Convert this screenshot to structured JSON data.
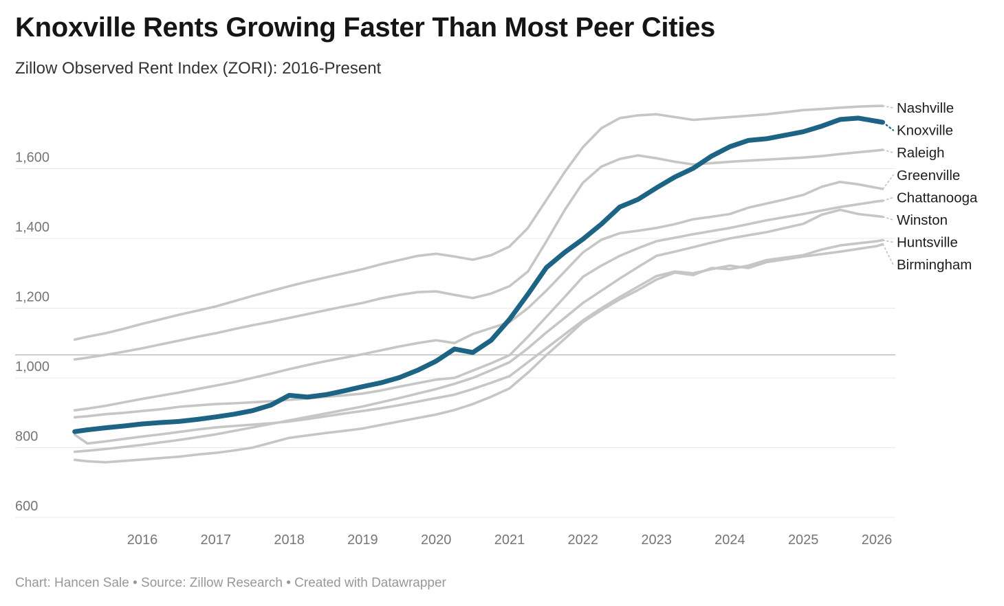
{
  "header": {
    "title": "Knoxville Rents Growing Faster Than Most Peer Cities",
    "subtitle": "Zillow Observed Rent Index (ZORI): 2016-Present"
  },
  "footer": {
    "text": "Chart: Hancen Sale • Source: Zillow Research • Created with Datawrapper"
  },
  "colors": {
    "highlight_line": "#1d6484",
    "gray_line": "#c6c6c6",
    "gridline": "#e9e9e9",
    "reference_line": "#bdbdbd",
    "axis_text": "#767676",
    "series_label_text": "#1d1d1d"
  },
  "chart_data": {
    "type": "line",
    "title": "Knoxville Rents Growing Faster Than Most Peer Cities",
    "subtitle": "Zillow Observed Rent Index (ZORI): 2016-Present",
    "xlabel": "",
    "ylabel": "",
    "legend_position": "right-edge-labels",
    "grid": "horizontal-only",
    "x_domain": [
      2015.08,
      2026.08
    ],
    "ylim": [
      600,
      1800
    ],
    "reference_line": {
      "value": 1066,
      "label": ""
    },
    "y_axis": {
      "ticks": [
        {
          "value": 600,
          "label": "600"
        },
        {
          "value": 800,
          "label": "800"
        },
        {
          "value": 1000,
          "label": "1,000"
        },
        {
          "value": 1200,
          "label": "1,200"
        },
        {
          "value": 1400,
          "label": "1,400"
        },
        {
          "value": 1600,
          "label": "1,600"
        }
      ]
    },
    "x_axis": {
      "ticks": [
        {
          "value": 2016,
          "label": "2016"
        },
        {
          "value": 2017,
          "label": "2017"
        },
        {
          "value": 2018,
          "label": "2018"
        },
        {
          "value": 2019,
          "label": "2019"
        },
        {
          "value": 2020,
          "label": "2020"
        },
        {
          "value": 2021,
          "label": "2021"
        },
        {
          "value": 2022,
          "label": "2022"
        },
        {
          "value": 2023,
          "label": "2023"
        },
        {
          "value": 2024,
          "label": "2024"
        },
        {
          "value": 2025,
          "label": "2025"
        },
        {
          "value": 2026,
          "label": "2026"
        }
      ]
    },
    "x": [
      2015.08,
      2015.25,
      2015.5,
      2015.75,
      2016,
      2016.25,
      2016.5,
      2016.75,
      2017,
      2017.25,
      2017.5,
      2017.75,
      2018,
      2018.25,
      2018.5,
      2018.75,
      2019,
      2019.25,
      2019.5,
      2019.75,
      2020,
      2020.25,
      2020.5,
      2020.75,
      2021,
      2021.25,
      2021.5,
      2021.75,
      2022,
      2022.25,
      2022.5,
      2022.75,
      2023,
      2023.25,
      2023.5,
      2023.75,
      2024,
      2024.25,
      2024.5,
      2024.75,
      2025,
      2025.25,
      2025.5,
      2025.75,
      2026,
      2026.08
    ],
    "series": [
      {
        "name": "Nashville",
        "highlight": false,
        "values": [
          1110,
          1118,
          1128,
          1141,
          1155,
          1168,
          1181,
          1193,
          1205,
          1220,
          1235,
          1249,
          1263,
          1276,
          1288,
          1300,
          1312,
          1326,
          1338,
          1350,
          1356,
          1348,
          1339,
          1352,
          1377,
          1430,
          1510,
          1590,
          1662,
          1716,
          1745,
          1753,
          1756,
          1748,
          1740,
          1744,
          1748,
          1752,
          1756,
          1762,
          1768,
          1771,
          1775,
          1778,
          1780,
          1780
        ]
      },
      {
        "name": "Knoxville",
        "highlight": true,
        "values": [
          846,
          851,
          857,
          862,
          868,
          872,
          875,
          881,
          888,
          896,
          906,
          922,
          950,
          945,
          952,
          963,
          975,
          986,
          1001,
          1022,
          1048,
          1083,
          1073,
          1108,
          1168,
          1240,
          1316,
          1360,
          1398,
          1441,
          1490,
          1512,
          1545,
          1576,
          1601,
          1636,
          1663,
          1681,
          1686,
          1696,
          1706,
          1722,
          1741,
          1745,
          1736,
          1733
        ]
      },
      {
        "name": "Raleigh",
        "highlight": false,
        "values": [
          1053,
          1058,
          1066,
          1075,
          1085,
          1096,
          1107,
          1118,
          1128,
          1140,
          1151,
          1161,
          1172,
          1183,
          1194,
          1205,
          1215,
          1228,
          1238,
          1246,
          1248,
          1238,
          1229,
          1242,
          1263,
          1305,
          1391,
          1481,
          1560,
          1606,
          1628,
          1638,
          1630,
          1620,
          1612,
          1616,
          1620,
          1623,
          1626,
          1629,
          1632,
          1636,
          1642,
          1647,
          1652,
          1654
        ]
      },
      {
        "name": "Greenville",
        "highlight": false,
        "values": [
          907,
          912,
          920,
          930,
          940,
          949,
          958,
          968,
          978,
          988,
          1000,
          1012,
          1025,
          1037,
          1048,
          1058,
          1068,
          1079,
          1090,
          1100,
          1108,
          1100,
          1126,
          1143,
          1160,
          1200,
          1250,
          1305,
          1360,
          1396,
          1415,
          1422,
          1430,
          1441,
          1455,
          1462,
          1470,
          1488,
          1500,
          1512,
          1525,
          1548,
          1562,
          1555,
          1545,
          1542
        ]
      },
      {
        "name": "Chattanooga",
        "highlight": false,
        "values": [
          887,
          890,
          896,
          900,
          905,
          910,
          917,
          921,
          925,
          927,
          930,
          933,
          937,
          941,
          946,
          950,
          955,
          964,
          975,
          985,
          995,
          1000,
          1021,
          1042,
          1065,
          1118,
          1175,
          1232,
          1290,
          1322,
          1350,
          1372,
          1392,
          1402,
          1412,
          1421,
          1430,
          1441,
          1452,
          1461,
          1470,
          1480,
          1490,
          1498,
          1506,
          1508
        ]
      },
      {
        "name": "Winston",
        "highlight": false,
        "values": [
          788,
          791,
          796,
          802,
          808,
          815,
          822,
          830,
          838,
          848,
          858,
          868,
          878,
          888,
          898,
          908,
          918,
          930,
          942,
          955,
          968,
          983,
          1000,
          1022,
          1045,
          1085,
          1130,
          1172,
          1215,
          1250,
          1285,
          1318,
          1350,
          1362,
          1375,
          1388,
          1400,
          1409,
          1418,
          1430,
          1442,
          1468,
          1482,
          1470,
          1464,
          1462
        ]
      },
      {
        "name": "Huntsville",
        "highlight": false,
        "values": [
          765,
          761,
          758,
          762,
          766,
          770,
          774,
          780,
          785,
          792,
          800,
          814,
          828,
          835,
          842,
          848,
          855,
          865,
          875,
          885,
          895,
          908,
          925,
          946,
          970,
          1015,
          1065,
          1112,
          1160,
          1194,
          1225,
          1252,
          1282,
          1302,
          1295,
          1315,
          1312,
          1322,
          1338,
          1345,
          1352,
          1368,
          1380,
          1386,
          1392,
          1395
        ]
      },
      {
        "name": "Birmingham",
        "highlight": false,
        "values": [
          837,
          812,
          818,
          825,
          832,
          838,
          845,
          852,
          858,
          862,
          866,
          870,
          875,
          882,
          890,
          898,
          905,
          913,
          922,
          932,
          942,
          952,
          968,
          986,
          1005,
          1045,
          1085,
          1125,
          1165,
          1200,
          1232,
          1262,
          1292,
          1305,
          1300,
          1312,
          1322,
          1315,
          1332,
          1340,
          1348,
          1355,
          1362,
          1370,
          1378,
          1383
        ]
      }
    ]
  }
}
